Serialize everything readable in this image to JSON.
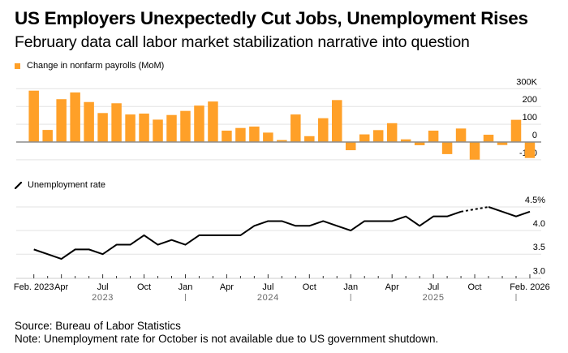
{
  "title": "US Employers Unexpectedly Cut Jobs, Unemployment Rises",
  "subtitle": "February data call labor market stabilization narrative into question",
  "footer": {
    "source": "Source: Bureau of Labor Statistics",
    "note": "Note: Unemployment rate for October is not available due to US government shutdown."
  },
  "colors": {
    "bar": "#FFA028",
    "line": "#000000",
    "grid": "#E3E3E3",
    "zero_line": "#8C8C8C",
    "axis_text": "#000000",
    "year_text": "#666666"
  },
  "chart_data": [
    {
      "type": "bar",
      "title": "Change in nonfarm payrolls (MoM)",
      "legend": "Change in nonfarm payrolls (MoM)",
      "legend_position": "top-left",
      "units": "thousands",
      "ylim": [
        -100,
        300
      ],
      "yticks": [
        300,
        200,
        100,
        0,
        -100
      ],
      "ytick_labels": [
        "300K",
        "200",
        "100",
        "0",
        "-100"
      ],
      "grid": true,
      "categories": [
        "2023-02",
        "2023-03",
        "2023-04",
        "2023-05",
        "2023-06",
        "2023-07",
        "2023-08",
        "2023-09",
        "2023-10",
        "2023-11",
        "2023-12",
        "2024-01",
        "2024-02",
        "2024-03",
        "2024-04",
        "2024-05",
        "2024-06",
        "2024-07",
        "2024-08",
        "2024-09",
        "2024-10",
        "2024-11",
        "2024-12",
        "2025-01",
        "2025-02",
        "2025-03",
        "2025-04",
        "2025-05",
        "2025-06",
        "2025-07",
        "2025-08",
        "2025-09",
        "2025-10",
        "2025-11",
        "2025-12",
        "2026-01",
        "2026-02"
      ],
      "values": [
        289,
        68,
        241,
        279,
        225,
        163,
        218,
        155,
        160,
        126,
        152,
        175,
        205,
        228,
        64,
        79,
        87,
        53,
        11,
        155,
        33,
        134,
        236,
        -46,
        43,
        67,
        106,
        15,
        -18,
        64,
        -68,
        76,
        -99,
        41,
        -17,
        125,
        -90
      ]
    },
    {
      "type": "line",
      "title": "Unemployment rate",
      "legend": "Unemployment rate",
      "legend_position": "top-left",
      "units": "percent",
      "ylim": [
        3.0,
        4.5
      ],
      "yticks": [
        4.5,
        4.0,
        3.5,
        3.0
      ],
      "ytick_labels": [
        "4.5%",
        "4.0",
        "3.5",
        "3.0"
      ],
      "grid": true,
      "categories": [
        "2023-02",
        "2023-03",
        "2023-04",
        "2023-05",
        "2023-06",
        "2023-07",
        "2023-08",
        "2023-09",
        "2023-10",
        "2023-11",
        "2023-12",
        "2024-01",
        "2024-02",
        "2024-03",
        "2024-04",
        "2024-05",
        "2024-06",
        "2024-07",
        "2024-08",
        "2024-09",
        "2024-10",
        "2024-11",
        "2024-12",
        "2025-01",
        "2025-02",
        "2025-03",
        "2025-04",
        "2025-05",
        "2025-06",
        "2025-07",
        "2025-08",
        "2025-09",
        "2025-10",
        "2025-11",
        "2025-12",
        "2026-01",
        "2026-02"
      ],
      "values": [
        3.6,
        3.5,
        3.4,
        3.6,
        3.6,
        3.5,
        3.7,
        3.7,
        3.9,
        3.7,
        3.8,
        3.7,
        3.9,
        3.9,
        3.9,
        3.9,
        4.1,
        4.2,
        4.2,
        4.1,
        4.1,
        4.2,
        4.1,
        4.0,
        4.2,
        4.2,
        4.2,
        4.3,
        4.1,
        4.3,
        4.3,
        4.4,
        null,
        4.5,
        4.4,
        4.3,
        4.4
      ],
      "missing_note": "October 2025 not available; gap bridged with dotted line"
    }
  ],
  "x_axis": {
    "month_labels": [
      {
        "index": 0,
        "label": "Feb. 2023"
      },
      {
        "index": 2,
        "label": "Apr"
      },
      {
        "index": 5,
        "label": "Jul"
      },
      {
        "index": 8,
        "label": "Oct"
      },
      {
        "index": 11,
        "label": "Jan"
      },
      {
        "index": 14,
        "label": "Apr"
      },
      {
        "index": 17,
        "label": "Jul"
      },
      {
        "index": 20,
        "label": "Oct"
      },
      {
        "index": 23,
        "label": "Jan"
      },
      {
        "index": 26,
        "label": "Apr"
      },
      {
        "index": 29,
        "label": "Jul"
      },
      {
        "index": 32,
        "label": "Oct"
      },
      {
        "index": 36,
        "label": "Feb. 2026"
      }
    ],
    "year_labels": [
      {
        "index": 5,
        "label": "2023"
      },
      {
        "index": 17,
        "label": "2024"
      },
      {
        "index": 29,
        "label": "2025"
      }
    ],
    "year_separators": [
      11,
      23,
      35
    ]
  }
}
